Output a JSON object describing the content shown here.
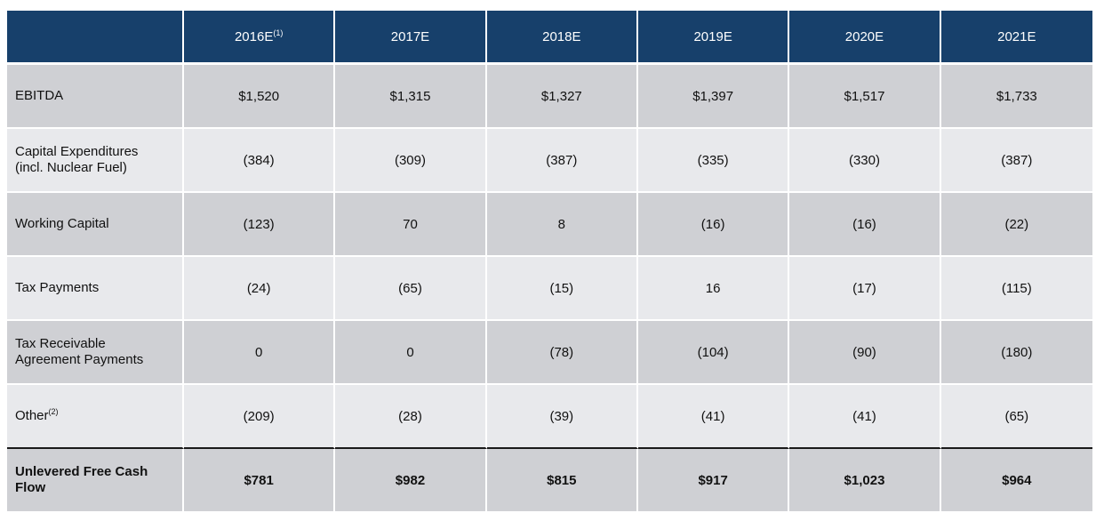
{
  "header": {
    "columns": [
      {
        "label": "2016E",
        "note": "(1)"
      },
      {
        "label": "2017E",
        "note": ""
      },
      {
        "label": "2018E",
        "note": ""
      },
      {
        "label": "2019E",
        "note": ""
      },
      {
        "label": "2020E",
        "note": ""
      },
      {
        "label": "2021E",
        "note": ""
      }
    ]
  },
  "rows": [
    {
      "label_line1": "EBITDA",
      "label_line2": "",
      "note": "",
      "values": [
        "$1,520",
        "$1,315",
        "$1,327",
        "$1,397",
        "$1,517",
        "$1,733"
      ]
    },
    {
      "label_line1": "Capital Expenditures",
      "label_line2": "(incl. Nuclear Fuel)",
      "note": "",
      "values": [
        "(384)",
        "(309)",
        "(387)",
        "(335)",
        "(330)",
        "(387)"
      ]
    },
    {
      "label_line1": "Working Capital",
      "label_line2": "",
      "note": "",
      "values": [
        "(123)",
        "70",
        "8",
        "(16)",
        "(16)",
        "(22)"
      ]
    },
    {
      "label_line1": "Tax Payments",
      "label_line2": "",
      "note": "",
      "values": [
        "(24)",
        "(65)",
        "(15)",
        "16",
        "(17)",
        "(115)"
      ]
    },
    {
      "label_line1": "Tax Receivable",
      "label_line2": "Agreement Payments",
      "note": "",
      "values": [
        "0",
        "0",
        "(78)",
        "(104)",
        "(90)",
        "(180)"
      ]
    },
    {
      "label_line1": "Other",
      "label_line2": "",
      "note": "(2)",
      "values": [
        "(209)",
        "(28)",
        "(39)",
        "(41)",
        "(41)",
        "(65)"
      ]
    }
  ],
  "total": {
    "label_line1": "Unlevered Free Cash",
    "label_line2": "Flow",
    "values": [
      "$781",
      "$982",
      "$815",
      "$917",
      "$1,023",
      "$964"
    ]
  },
  "colors": {
    "header_bg": "#17406b",
    "row_dark": "#cfd0d4",
    "row_light": "#e8e9ec"
  }
}
